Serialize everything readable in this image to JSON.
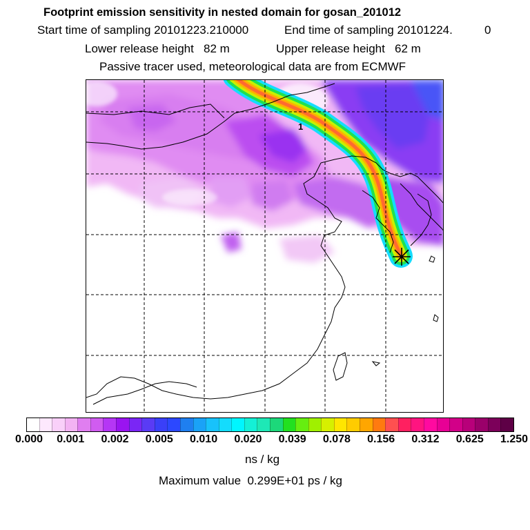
{
  "header": {
    "title": "Footprint emission sensitivity in nested domain for gosan_201012",
    "start_sampling": "Start time of sampling 20101223.210000",
    "end_sampling": "End time of sampling 20101224.",
    "end_hour": "0",
    "lower_release": "Lower release height   82 m",
    "upper_release": "Upper release height   62 m",
    "tracer_info": "Passive tracer used, meteorological data are from ECMWF"
  },
  "map": {
    "marker_label": "1",
    "release_site_icon": "star-marker-icon"
  },
  "colorbar": {
    "colors": [
      "#ffffff",
      "#fde8fd",
      "#f9d0f9",
      "#f3b3f3",
      "#e07ef0",
      "#d05cf0",
      "#b536f5",
      "#9a14f0",
      "#7a26f5",
      "#5a3bf5",
      "#3a40f8",
      "#2c48ff",
      "#1f7ff0",
      "#1aa2f7",
      "#18c2fb",
      "#14dcfd",
      "#00f6ff",
      "#14f0d6",
      "#1ee8b6",
      "#1cd87a",
      "#22e020",
      "#66ee10",
      "#a0f000",
      "#d6f000",
      "#ffe600",
      "#ffcc00",
      "#ffa600",
      "#ff7a10",
      "#ff5050",
      "#ff2060",
      "#ff1480",
      "#ff0aa0",
      "#e80095",
      "#d20088",
      "#b8007a",
      "#9a006a",
      "#7c005a",
      "#5e0046"
    ],
    "ticks": [
      "0.000",
      "0.001",
      "0.002",
      "0.005",
      "0.010",
      "0.020",
      "0.039",
      "0.078",
      "0.156",
      "0.312",
      "0.625",
      "1.250"
    ],
    "unit": "ns / kg",
    "max_value": "Maximum value  0.299E+01 ps / kg"
  }
}
